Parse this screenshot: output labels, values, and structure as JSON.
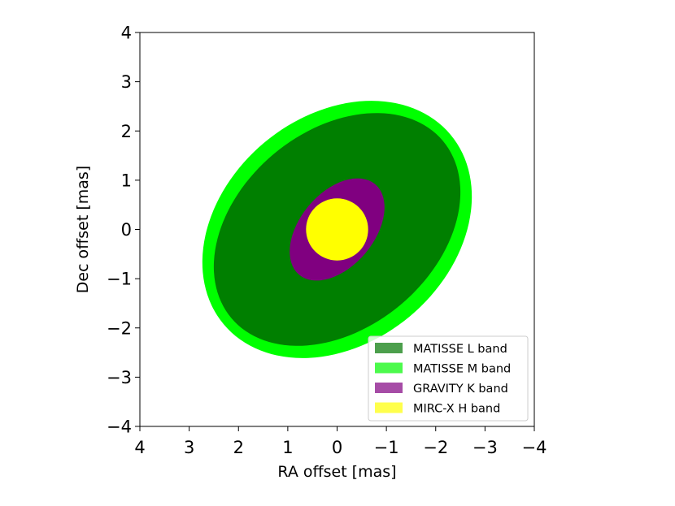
{
  "chart_data": {
    "type": "ellipse-plot",
    "xlabel": "RA offset [mas]",
    "ylabel": "Dec offset [mas]",
    "xlim": [
      4,
      -4
    ],
    "ylim": [
      -4,
      4
    ],
    "x_ticks": [
      4,
      3,
      2,
      1,
      0,
      -1,
      -2,
      -3,
      -4
    ],
    "y_ticks": [
      4,
      3,
      2,
      1,
      0,
      -1,
      -2,
      -3,
      -4
    ],
    "x_tick_labels": [
      "4",
      "3",
      "2",
      "1",
      "0",
      "−1",
      "−2",
      "−3",
      "−4"
    ],
    "y_tick_labels": [
      "4",
      "3",
      "2",
      "1",
      "0",
      "−1",
      "−2",
      "−3",
      "−4"
    ],
    "grid": false,
    "legend_position": "lower-right",
    "series": [
      {
        "name": "MATISSE M band",
        "center": [
          0,
          0
        ],
        "semi_major": 3.0,
        "semi_minor": 2.3,
        "position_angle_deg": 40,
        "color": "#00ff00",
        "legend_color": "#4cfa4c"
      },
      {
        "name": "MATISSE L band",
        "center": [
          0,
          0
        ],
        "semi_major": 2.8,
        "semi_minor": 2.0,
        "position_angle_deg": 40,
        "color": "#007f00",
        "legend_color": "#4c9f4c"
      },
      {
        "name": "GRAVITY K band",
        "center": [
          0,
          0
        ],
        "semi_major": 1.2,
        "semi_minor": 0.75,
        "position_angle_deg": 50,
        "color": "#800080",
        "legend_color": "#a64ca6"
      },
      {
        "name": "MIRC-X H band",
        "center": [
          0,
          0
        ],
        "semi_major": 0.63,
        "semi_minor": 0.63,
        "position_angle_deg": 0,
        "color": "#ffff00",
        "legend_color": "#ffff4c"
      }
    ],
    "legend_order": [
      "MATISSE L band",
      "MATISSE M band",
      "GRAVITY K band",
      "MIRC-X H band"
    ]
  }
}
